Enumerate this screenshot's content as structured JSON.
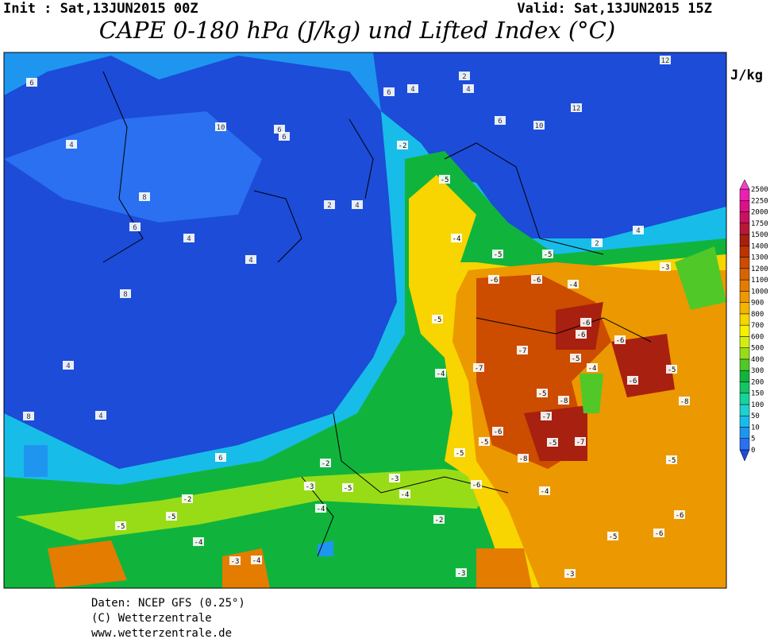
{
  "header": {
    "init": "Init : Sat,13JUN2015 00Z",
    "valid": "Valid: Sat,13JUN2015 15Z",
    "title": "CAPE 0-180 hPa (J/kg) und Lifted Index (°C)"
  },
  "legend": {
    "unit": "J/kg",
    "levels": [
      0,
      5,
      10,
      50,
      100,
      150,
      200,
      300,
      400,
      500,
      600,
      700,
      800,
      900,
      1000,
      1100,
      1200,
      1300,
      1400,
      1500,
      1750,
      2000,
      2250,
      2500
    ],
    "colors": [
      "#1c4cd8",
      "#2a70f0",
      "#1e96f0",
      "#18bce8",
      "#1cd2d0",
      "#18d29c",
      "#14c464",
      "#10b43c",
      "#50c828",
      "#98dc18",
      "#d2ee10",
      "#f4f000",
      "#f8d400",
      "#f4b400",
      "#ec9800",
      "#e47c00",
      "#d86400",
      "#cc4c00",
      "#bc3400",
      "#a82010",
      "#b81838",
      "#cc1060",
      "#dc1088",
      "#ec20b0",
      "#f040c8"
    ]
  },
  "map": {
    "li_labels": [
      "6",
      "10",
      "6",
      "6",
      "4",
      "8",
      "4",
      "8",
      "4",
      "6",
      "4",
      "2",
      "4",
      "4",
      "8",
      "6",
      "4",
      "4",
      "2",
      "6",
      "12",
      "10",
      "12",
      "-2",
      "6",
      "2",
      "4",
      "-3",
      "-5",
      "-5",
      "-5",
      "-6",
      "-6",
      "-4",
      "-5",
      "-7",
      "-6",
      "-4",
      "-7",
      "-6",
      "-5",
      "-6",
      "-4",
      "-8",
      "-5",
      "-6",
      "-7",
      "-5",
      "-8",
      "-5",
      "-5",
      "-6",
      "-4",
      "-5",
      "-2",
      "-3",
      "-5",
      "-4",
      "-3",
      "-2",
      "-5",
      "-5",
      "-4",
      "-3",
      "-4",
      "-6",
      "-8",
      "-7",
      "-5",
      "-6",
      "-3",
      "-4",
      "-2",
      "-4",
      "-5",
      "-6",
      "-3"
    ]
  },
  "footer": {
    "source": "Daten: NCEP GFS (0.25°)",
    "copyright": "(C) Wetterzentrale",
    "url": "www.wetterzentrale.de"
  }
}
